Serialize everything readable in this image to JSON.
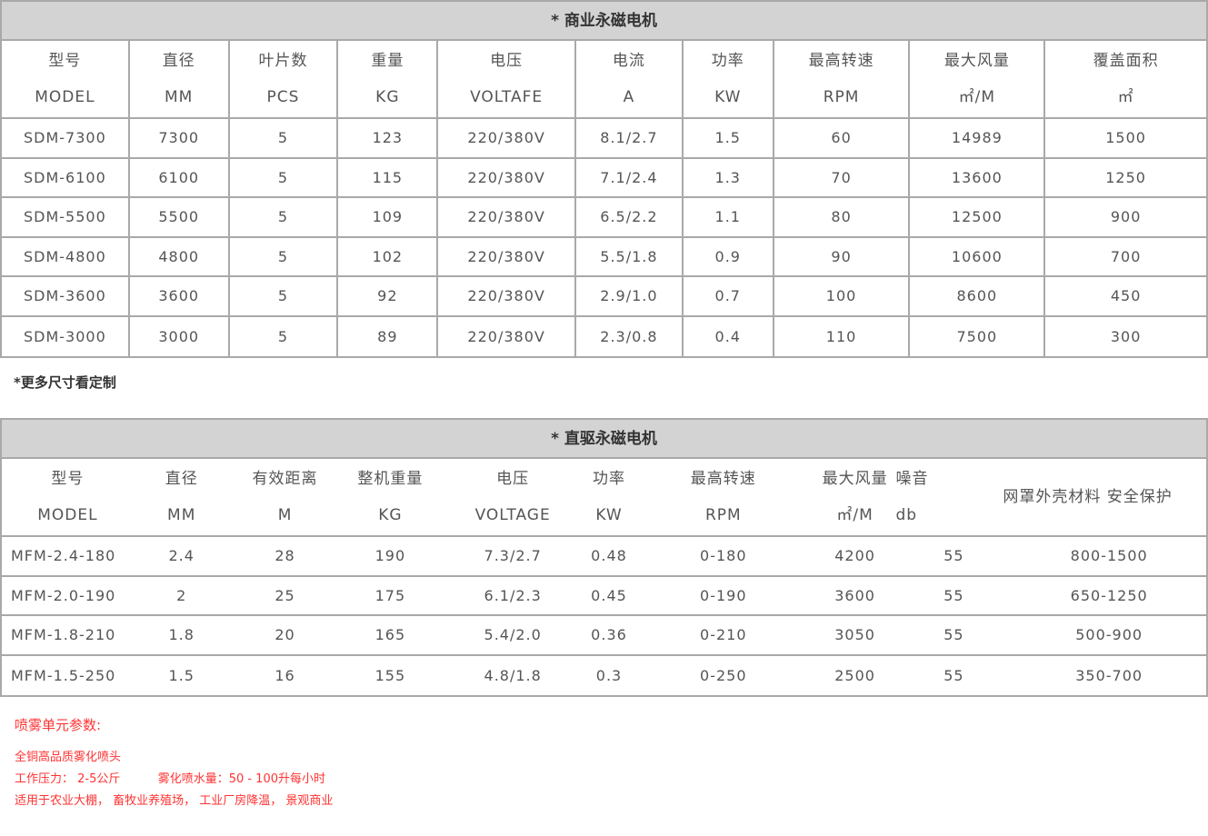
{
  "table1": {
    "title": "* 商业永磁电机",
    "headers": [
      [
        "型号",
        "MODEL"
      ],
      [
        "直径",
        "MM"
      ],
      [
        "叶片数",
        "PCS"
      ],
      [
        "重量",
        "KG"
      ],
      [
        "电压",
        "VOLTAFE"
      ],
      [
        "电流",
        "A"
      ],
      [
        "功率",
        "KW"
      ],
      [
        "最高转速",
        "RPM"
      ],
      [
        "最大风量",
        "㎡/M"
      ],
      [
        "覆盖面积",
        "㎡"
      ]
    ],
    "rows": [
      [
        "SDM-7300",
        "7300",
        "5",
        "123",
        "220/380V",
        "8.1/2.7",
        "1.5",
        "60",
        "14989",
        "1500"
      ],
      [
        "SDM-6100",
        "6100",
        "5",
        "115",
        "220/380V",
        "7.1/2.4",
        "1.3",
        "70",
        "13600",
        "1250"
      ],
      [
        "SDM-5500",
        "5500",
        "5",
        "109",
        "220/380V",
        "6.5/2.2",
        "1.1",
        "80",
        "12500",
        "900"
      ],
      [
        "SDM-4800",
        "4800",
        "5",
        "102",
        "220/380V",
        "5.5/1.8",
        "0.9",
        "90",
        "10600",
        "700"
      ],
      [
        "SDM-3600",
        "3600",
        "5",
        "92",
        "220/380V",
        "2.9/1.0",
        "0.7",
        "100",
        "8600",
        "450"
      ],
      [
        "SDM-3000",
        "3000",
        "5",
        "89",
        "220/380V",
        "2.3/0.8",
        "0.4",
        "110",
        "7500",
        "300"
      ]
    ]
  },
  "note": "*更多尺寸看定制",
  "table2": {
    "title": "* 直驱永磁电机",
    "headers": [
      [
        "型号",
        "MODEL"
      ],
      [
        "直径",
        "MM"
      ],
      [
        "有效距离",
        "M"
      ],
      [
        "整机重量",
        "KG"
      ],
      [
        "电压",
        "VOLTAGE"
      ],
      [
        "功率",
        "KW"
      ],
      [
        "最高转速",
        "RPM"
      ],
      [
        "最大风量",
        "㎡/M"
      ],
      [
        "噪音",
        "db"
      ],
      [
        "网罩外壳材料 安全保护",
        ""
      ]
    ],
    "rows": [
      [
        "MFM-2.4-180",
        "2.4",
        "28",
        "190",
        "7.3/2.7",
        "0.48",
        "0-180",
        "4200",
        "55",
        "800-1500"
      ],
      [
        "MFM-2.0-190",
        "2",
        "25",
        "175",
        "6.1/2.3",
        "0.45",
        "0-190",
        "3600",
        "55",
        "650-1250"
      ],
      [
        "MFM-1.8-210",
        "1.8",
        "20",
        "165",
        "5.4/2.0",
        "0.36",
        "0-210",
        "3050",
        "55",
        "500-900"
      ],
      [
        "MFM-1.5-250",
        "1.5",
        "16",
        "155",
        "4.8/1.8",
        "0.3",
        "0-250",
        "2500",
        "55",
        "350-700"
      ]
    ]
  },
  "spray": {
    "heading": "喷雾单元参数:",
    "lines": [
      "全铜高品质雾化喷头",
      "工作压力： 2-5公斤          雾化喷水量：50 - 100升每小时",
      "适用于农业大棚， 畜牧业养殖场， 工业厂房降温， 景观商业"
    ]
  }
}
